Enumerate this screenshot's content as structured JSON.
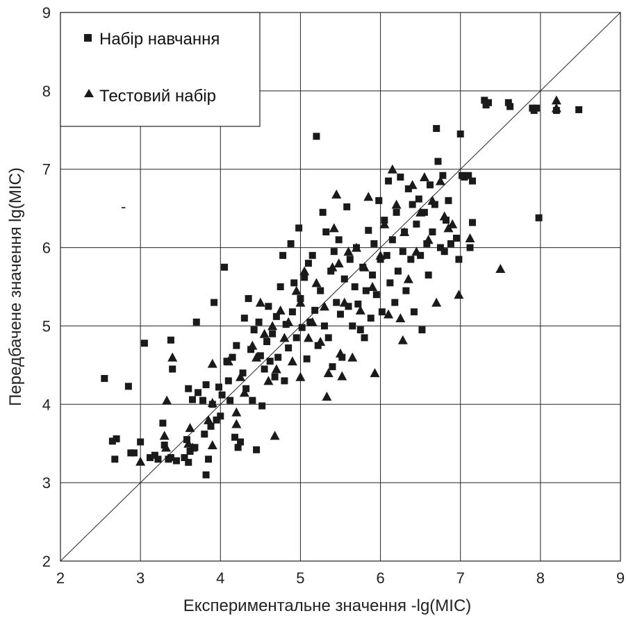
{
  "chart_data": {
    "type": "scatter",
    "xlabel": "Експериментальне значення -lg(MIC)",
    "ylabel": "Передбачене значення  lg(MIC)",
    "xlim": [
      2,
      9
    ],
    "ylim": [
      2,
      9
    ],
    "x_ticks": [
      "2",
      "3",
      "4",
      "5",
      "6",
      "7",
      "8",
      "9"
    ],
    "y_ticks": [
      "2",
      "3",
      "4",
      "5",
      "6",
      "7",
      "8",
      "9"
    ],
    "grid": true,
    "legend_position": "top-left",
    "reference_line": {
      "from": [
        2,
        2
      ],
      "to": [
        9,
        9
      ]
    },
    "marker_color": "#1a1a1a",
    "series": [
      {
        "name": "Набір навчання",
        "marker": "square",
        "points": [
          [
            2.55,
            4.33
          ],
          [
            2.65,
            3.53
          ],
          [
            2.68,
            3.3
          ],
          [
            2.7,
            3.56
          ],
          [
            2.85,
            4.23
          ],
          [
            2.88,
            3.38
          ],
          [
            2.92,
            3.38
          ],
          [
            3.0,
            3.52
          ],
          [
            3.05,
            4.78
          ],
          [
            3.12,
            3.32
          ],
          [
            3.18,
            3.35
          ],
          [
            3.22,
            3.3
          ],
          [
            3.28,
            3.76
          ],
          [
            3.3,
            3.48
          ],
          [
            3.35,
            3.3
          ],
          [
            3.38,
            3.32
          ],
          [
            3.38,
            4.82
          ],
          [
            3.4,
            4.45
          ],
          [
            3.45,
            3.28
          ],
          [
            3.55,
            3.32
          ],
          [
            3.58,
            3.55
          ],
          [
            3.62,
            3.4
          ],
          [
            3.68,
            3.45
          ],
          [
            3.6,
            3.26
          ],
          [
            3.6,
            4.2
          ],
          [
            3.65,
            4.06
          ],
          [
            3.7,
            5.05
          ],
          [
            3.72,
            4.15
          ],
          [
            3.78,
            4.05
          ],
          [
            3.8,
            3.62
          ],
          [
            3.82,
            3.1
          ],
          [
            3.82,
            4.25
          ],
          [
            3.85,
            3.3
          ],
          [
            3.88,
            3.72
          ],
          [
            3.9,
            4.0
          ],
          [
            3.92,
            5.3
          ],
          [
            3.95,
            3.8
          ],
          [
            3.98,
            4.22
          ],
          [
            4.0,
            3.85
          ],
          [
            4.02,
            4.12
          ],
          [
            4.05,
            5.75
          ],
          [
            4.08,
            4.55
          ],
          [
            4.1,
            4.3
          ],
          [
            4.12,
            4.05
          ],
          [
            4.15,
            4.6
          ],
          [
            4.18,
            3.58
          ],
          [
            4.2,
            4.75
          ],
          [
            4.22,
            3.45
          ],
          [
            4.25,
            3.52
          ],
          [
            4.28,
            4.4
          ],
          [
            4.3,
            5.1
          ],
          [
            4.32,
            4.2
          ],
          [
            4.35,
            5.35
          ],
          [
            4.38,
            4.7
          ],
          [
            4.4,
            4.05
          ],
          [
            4.42,
            4.95
          ],
          [
            4.45,
            3.42
          ],
          [
            4.48,
            5.05
          ],
          [
            4.5,
            4.62
          ],
          [
            4.52,
            3.98
          ],
          [
            4.55,
            4.45
          ],
          [
            4.58,
            4.8
          ],
          [
            4.6,
            5.25
          ],
          [
            4.62,
            4.55
          ],
          [
            4.65,
            4.9
          ],
          [
            4.68,
            4.35
          ],
          [
            4.7,
            5.12
          ],
          [
            4.72,
            4.6
          ],
          [
            4.75,
            5.5
          ],
          [
            4.78,
            5.9
          ],
          [
            4.8,
            4.3
          ],
          [
            4.82,
            5.02
          ],
          [
            4.85,
            4.72
          ],
          [
            4.88,
            6.05
          ],
          [
            4.9,
            5.18
          ],
          [
            4.92,
            5.55
          ],
          [
            4.95,
            4.85
          ],
          [
            4.98,
            6.25
          ],
          [
            5.0,
            5.35
          ],
          [
            5.02,
            4.98
          ],
          [
            5.05,
            5.62
          ],
          [
            5.08,
            4.58
          ],
          [
            5.1,
            5.8
          ],
          [
            5.12,
            5.05
          ],
          [
            5.15,
            5.9
          ],
          [
            5.18,
            5.2
          ],
          [
            5.2,
            7.42
          ],
          [
            5.22,
            4.75
          ],
          [
            5.25,
            5.45
          ],
          [
            5.28,
            6.45
          ],
          [
            5.3,
            5.0
          ],
          [
            5.32,
            6.2
          ],
          [
            5.35,
            4.85
          ],
          [
            5.38,
            5.7
          ],
          [
            5.4,
            4.48
          ],
          [
            5.42,
            5.95
          ],
          [
            5.45,
            5.3
          ],
          [
            5.48,
            6.1
          ],
          [
            5.5,
            5.15
          ],
          [
            5.52,
            4.6
          ],
          [
            5.55,
            5.6
          ],
          [
            5.58,
            6.52
          ],
          [
            5.6,
            5.25
          ],
          [
            5.62,
            5.85
          ],
          [
            5.65,
            5.0
          ],
          [
            5.68,
            5.5
          ],
          [
            5.7,
            6.0
          ],
          [
            5.72,
            5.28
          ],
          [
            5.75,
            4.95
          ],
          [
            5.78,
            5.75
          ],
          [
            5.8,
            4.85
          ],
          [
            5.82,
            5.45
          ],
          [
            5.85,
            6.22
          ],
          [
            5.88,
            5.1
          ],
          [
            5.9,
            5.65
          ],
          [
            5.92,
            6.05
          ],
          [
            5.95,
            5.4
          ],
          [
            5.98,
            6.6
          ],
          [
            6.0,
            5.85
          ],
          [
            6.02,
            5.18
          ],
          [
            6.05,
            6.35
          ],
          [
            6.08,
            5.9
          ],
          [
            6.1,
            6.85
          ],
          [
            6.12,
            5.55
          ],
          [
            6.15,
            6.1
          ],
          [
            6.18,
            5.3
          ],
          [
            6.2,
            6.45
          ],
          [
            6.22,
            5.7
          ],
          [
            6.25,
            6.9
          ],
          [
            6.28,
            5.95
          ],
          [
            6.3,
            6.2
          ],
          [
            6.32,
            5.45
          ],
          [
            6.35,
            6.75
          ],
          [
            6.38,
            5.85
          ],
          [
            6.4,
            6.55
          ],
          [
            6.42,
            5.18
          ],
          [
            6.45,
            6.3
          ],
          [
            6.48,
            6.62
          ],
          [
            6.5,
            5.9
          ],
          [
            6.52,
            4.95
          ],
          [
            6.55,
            6.45
          ],
          [
            6.58,
            6.05
          ],
          [
            6.6,
            5.65
          ],
          [
            6.62,
            6.8
          ],
          [
            6.65,
            6.2
          ],
          [
            6.68,
            6.55
          ],
          [
            6.7,
            7.52
          ],
          [
            6.72,
            7.1
          ],
          [
            6.75,
            6.0
          ],
          [
            6.78,
            6.92
          ],
          [
            6.8,
            5.95
          ],
          [
            6.82,
            6.35
          ],
          [
            6.85,
            6.6
          ],
          [
            6.88,
            6.05
          ],
          [
            6.95,
            6.12
          ],
          [
            6.98,
            5.85
          ],
          [
            7.0,
            7.45
          ],
          [
            7.02,
            6.92
          ],
          [
            7.05,
            6.9
          ],
          [
            7.1,
            6.92
          ],
          [
            7.12,
            6.0
          ],
          [
            7.15,
            6.32
          ],
          [
            7.15,
            6.85
          ],
          [
            7.3,
            7.88
          ],
          [
            7.32,
            7.82
          ],
          [
            7.35,
            7.85
          ],
          [
            7.6,
            7.85
          ],
          [
            7.62,
            7.8
          ],
          [
            7.9,
            7.78
          ],
          [
            7.92,
            7.75
          ],
          [
            7.95,
            7.78
          ],
          [
            7.98,
            6.38
          ],
          [
            8.2,
            7.75
          ],
          [
            8.48,
            7.76
          ]
        ]
      },
      {
        "name": "Тестовий набір",
        "marker": "triangle",
        "points": [
          [
            3.0,
            3.27
          ],
          [
            3.3,
            3.6
          ],
          [
            3.32,
            3.45
          ],
          [
            3.33,
            4.05
          ],
          [
            3.4,
            4.6
          ],
          [
            3.6,
            3.5
          ],
          [
            3.62,
            3.7
          ],
          [
            3.65,
            3.45
          ],
          [
            3.85,
            3.8
          ],
          [
            3.9,
            3.48
          ],
          [
            3.9,
            4.02
          ],
          [
            3.9,
            4.52
          ],
          [
            4.1,
            4.55
          ],
          [
            4.2,
            3.9
          ],
          [
            4.2,
            3.75
          ],
          [
            4.25,
            4.35
          ],
          [
            4.3,
            4.15
          ],
          [
            4.4,
            4.75
          ],
          [
            4.45,
            4.6
          ],
          [
            4.5,
            5.3
          ],
          [
            4.55,
            4.9
          ],
          [
            4.6,
            4.3
          ],
          [
            4.65,
            5.0
          ],
          [
            4.68,
            3.6
          ],
          [
            4.7,
            4.45
          ],
          [
            4.75,
            5.2
          ],
          [
            4.8,
            4.85
          ],
          [
            4.85,
            5.05
          ],
          [
            4.9,
            4.55
          ],
          [
            4.95,
            5.45
          ],
          [
            5.0,
            5.3
          ],
          [
            5.0,
            4.35
          ],
          [
            5.05,
            5.7
          ],
          [
            5.1,
            4.85
          ],
          [
            5.15,
            5.05
          ],
          [
            5.2,
            5.55
          ],
          [
            5.25,
            4.8
          ],
          [
            5.3,
            5.25
          ],
          [
            5.33,
            4.1
          ],
          [
            5.35,
            4.4
          ],
          [
            5.4,
            5.75
          ],
          [
            5.42,
            6.25
          ],
          [
            5.45,
            6.68
          ],
          [
            5.48,
            5.8
          ],
          [
            5.5,
            4.65
          ],
          [
            5.52,
            4.36
          ],
          [
            5.55,
            5.3
          ],
          [
            5.6,
            5.95
          ],
          [
            5.65,
            4.6
          ],
          [
            5.7,
            6.0
          ],
          [
            5.75,
            5.2
          ],
          [
            5.8,
            5.75
          ],
          [
            5.85,
            6.65
          ],
          [
            5.9,
            5.5
          ],
          [
            5.93,
            4.4
          ],
          [
            6.0,
            5.9
          ],
          [
            6.05,
            6.3
          ],
          [
            6.1,
            5.15
          ],
          [
            6.15,
            7.0
          ],
          [
            6.2,
            6.55
          ],
          [
            6.25,
            5.1
          ],
          [
            6.28,
            4.82
          ],
          [
            6.3,
            6.2
          ],
          [
            6.35,
            5.6
          ],
          [
            6.4,
            6.8
          ],
          [
            6.45,
            5.95
          ],
          [
            6.5,
            6.45
          ],
          [
            6.55,
            6.9
          ],
          [
            6.6,
            6.1
          ],
          [
            6.65,
            6.6
          ],
          [
            6.7,
            5.3
          ],
          [
            6.75,
            6.85
          ],
          [
            6.8,
            6.4
          ],
          [
            6.85,
            6.25
          ],
          [
            6.9,
            6.3
          ],
          [
            6.98,
            5.4
          ],
          [
            7.12,
            6.12
          ],
          [
            7.5,
            5.73
          ],
          [
            8.2,
            7.88
          ],
          [
            8.2,
            7.78
          ]
        ]
      }
    ]
  },
  "legend": {
    "items": [
      {
        "label": "Набір навчання",
        "marker": "square"
      },
      {
        "label": "Тестовий набір",
        "marker": "triangle"
      }
    ]
  },
  "stray_mark": {
    "text": "-"
  }
}
